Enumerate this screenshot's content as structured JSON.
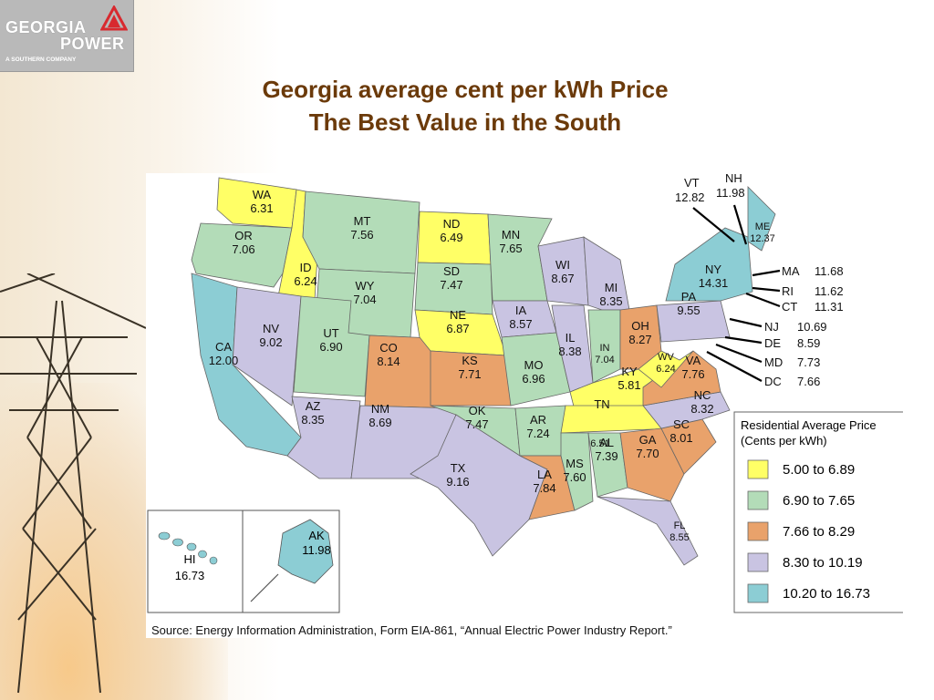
{
  "logo": {
    "line1": "GEORGIA",
    "line2": "POWER",
    "line3": "A SOUTHERN COMPANY"
  },
  "title": {
    "line1": "Georgia average cent per kWh Price",
    "line2": "The Best Value in the South"
  },
  "legend": {
    "title_line1": "Residential Average Price",
    "title_line2": "(Cents per kWh)",
    "items": [
      {
        "label": "5.00 to 6.89",
        "color": "#ffff66"
      },
      {
        "label": "6.90 to 7.65",
        "color": "#b3dcb8"
      },
      {
        "label": "7.66 to 8.29",
        "color": "#e9a26b"
      },
      {
        "label": "8.30 to 10.19",
        "color": "#c9c4e2"
      },
      {
        "label": "10.20 to 16.73",
        "color": "#8ccdd4"
      }
    ]
  },
  "states": [
    {
      "abbr": "WA",
      "value": "6.31",
      "bin": 0
    },
    {
      "abbr": "OR",
      "value": "7.06",
      "bin": 1
    },
    {
      "abbr": "CA",
      "value": "12.00",
      "bin": 4
    },
    {
      "abbr": "ID",
      "value": "6.24",
      "bin": 0
    },
    {
      "abbr": "NV",
      "value": "9.02",
      "bin": 3
    },
    {
      "abbr": "MT",
      "value": "7.56",
      "bin": 1
    },
    {
      "abbr": "WY",
      "value": "7.04",
      "bin": 1
    },
    {
      "abbr": "UT",
      "value": "6.90",
      "bin": 1
    },
    {
      "abbr": "AZ",
      "value": "8.35",
      "bin": 3
    },
    {
      "abbr": "CO",
      "value": "8.14",
      "bin": 2
    },
    {
      "abbr": "NM",
      "value": "8.69",
      "bin": 3
    },
    {
      "abbr": "ND",
      "value": "6.49",
      "bin": 0
    },
    {
      "abbr": "SD",
      "value": "7.47",
      "bin": 1
    },
    {
      "abbr": "NE",
      "value": "6.87",
      "bin": 0
    },
    {
      "abbr": "KS",
      "value": "7.71",
      "bin": 2
    },
    {
      "abbr": "OK",
      "value": "7.47",
      "bin": 1
    },
    {
      "abbr": "TX",
      "value": "9.16",
      "bin": 3
    },
    {
      "abbr": "MN",
      "value": "7.65",
      "bin": 1
    },
    {
      "abbr": "IA",
      "value": "8.57",
      "bin": 3
    },
    {
      "abbr": "MO",
      "value": "6.96",
      "bin": 1
    },
    {
      "abbr": "AR",
      "value": "7.24",
      "bin": 1
    },
    {
      "abbr": "LA",
      "value": "7.84",
      "bin": 2
    },
    {
      "abbr": "WI",
      "value": "8.67",
      "bin": 3
    },
    {
      "abbr": "IL",
      "value": "8.38",
      "bin": 3
    },
    {
      "abbr": "MI",
      "value": "8.35",
      "bin": 3
    },
    {
      "abbr": "IN",
      "value": "7.04",
      "bin": 1
    },
    {
      "abbr": "OH",
      "value": "8.27",
      "bin": 2
    },
    {
      "abbr": "KY",
      "value": "5.81",
      "bin": 0
    },
    {
      "abbr": "TN",
      "value": "",
      "bin": 0
    },
    {
      "abbr": "MS",
      "value": "7.60",
      "bin": 1
    },
    {
      "abbr": "AL",
      "value": "7.39",
      "bin": 1
    },
    {
      "abbr": "GA",
      "value": "7.70",
      "bin": 2
    },
    {
      "abbr": "FL",
      "value": "8.55",
      "bin": 3
    },
    {
      "abbr": "SC",
      "value": "8.01",
      "bin": 2
    },
    {
      "abbr": "NC",
      "value": "8.32",
      "bin": 3
    },
    {
      "abbr": "VA",
      "value": "7.76",
      "bin": 2
    },
    {
      "abbr": "WV",
      "value": "6.24",
      "bin": 0
    },
    {
      "abbr": "PA",
      "value": "9.55",
      "bin": 3
    },
    {
      "abbr": "NY",
      "value": "14.31",
      "bin": 4
    },
    {
      "abbr": "ME",
      "value": "12.37",
      "bin": 4
    },
    {
      "abbr": "AK",
      "value": "11.98",
      "bin": 4
    },
    {
      "abbr": "HI",
      "value": "16.73",
      "bin": 4
    }
  ],
  "tn_extra_value": "6.51",
  "callouts": [
    {
      "abbr": "VT",
      "value": "12.82"
    },
    {
      "abbr": "NH",
      "value": "11.98"
    },
    {
      "abbr": "MA",
      "value": "11.68"
    },
    {
      "abbr": "RI",
      "value": "11.62"
    },
    {
      "abbr": "CT",
      "value": "11.31"
    },
    {
      "abbr": "NJ",
      "value": "10.69"
    },
    {
      "abbr": "DE",
      "value": "8.59"
    },
    {
      "abbr": "MD",
      "value": "7.73"
    },
    {
      "abbr": "DC",
      "value": "7.66"
    }
  ],
  "source": "Source: Energy Information Administration, Form EIA-861, “Annual Electric Power Industry Report.”"
}
